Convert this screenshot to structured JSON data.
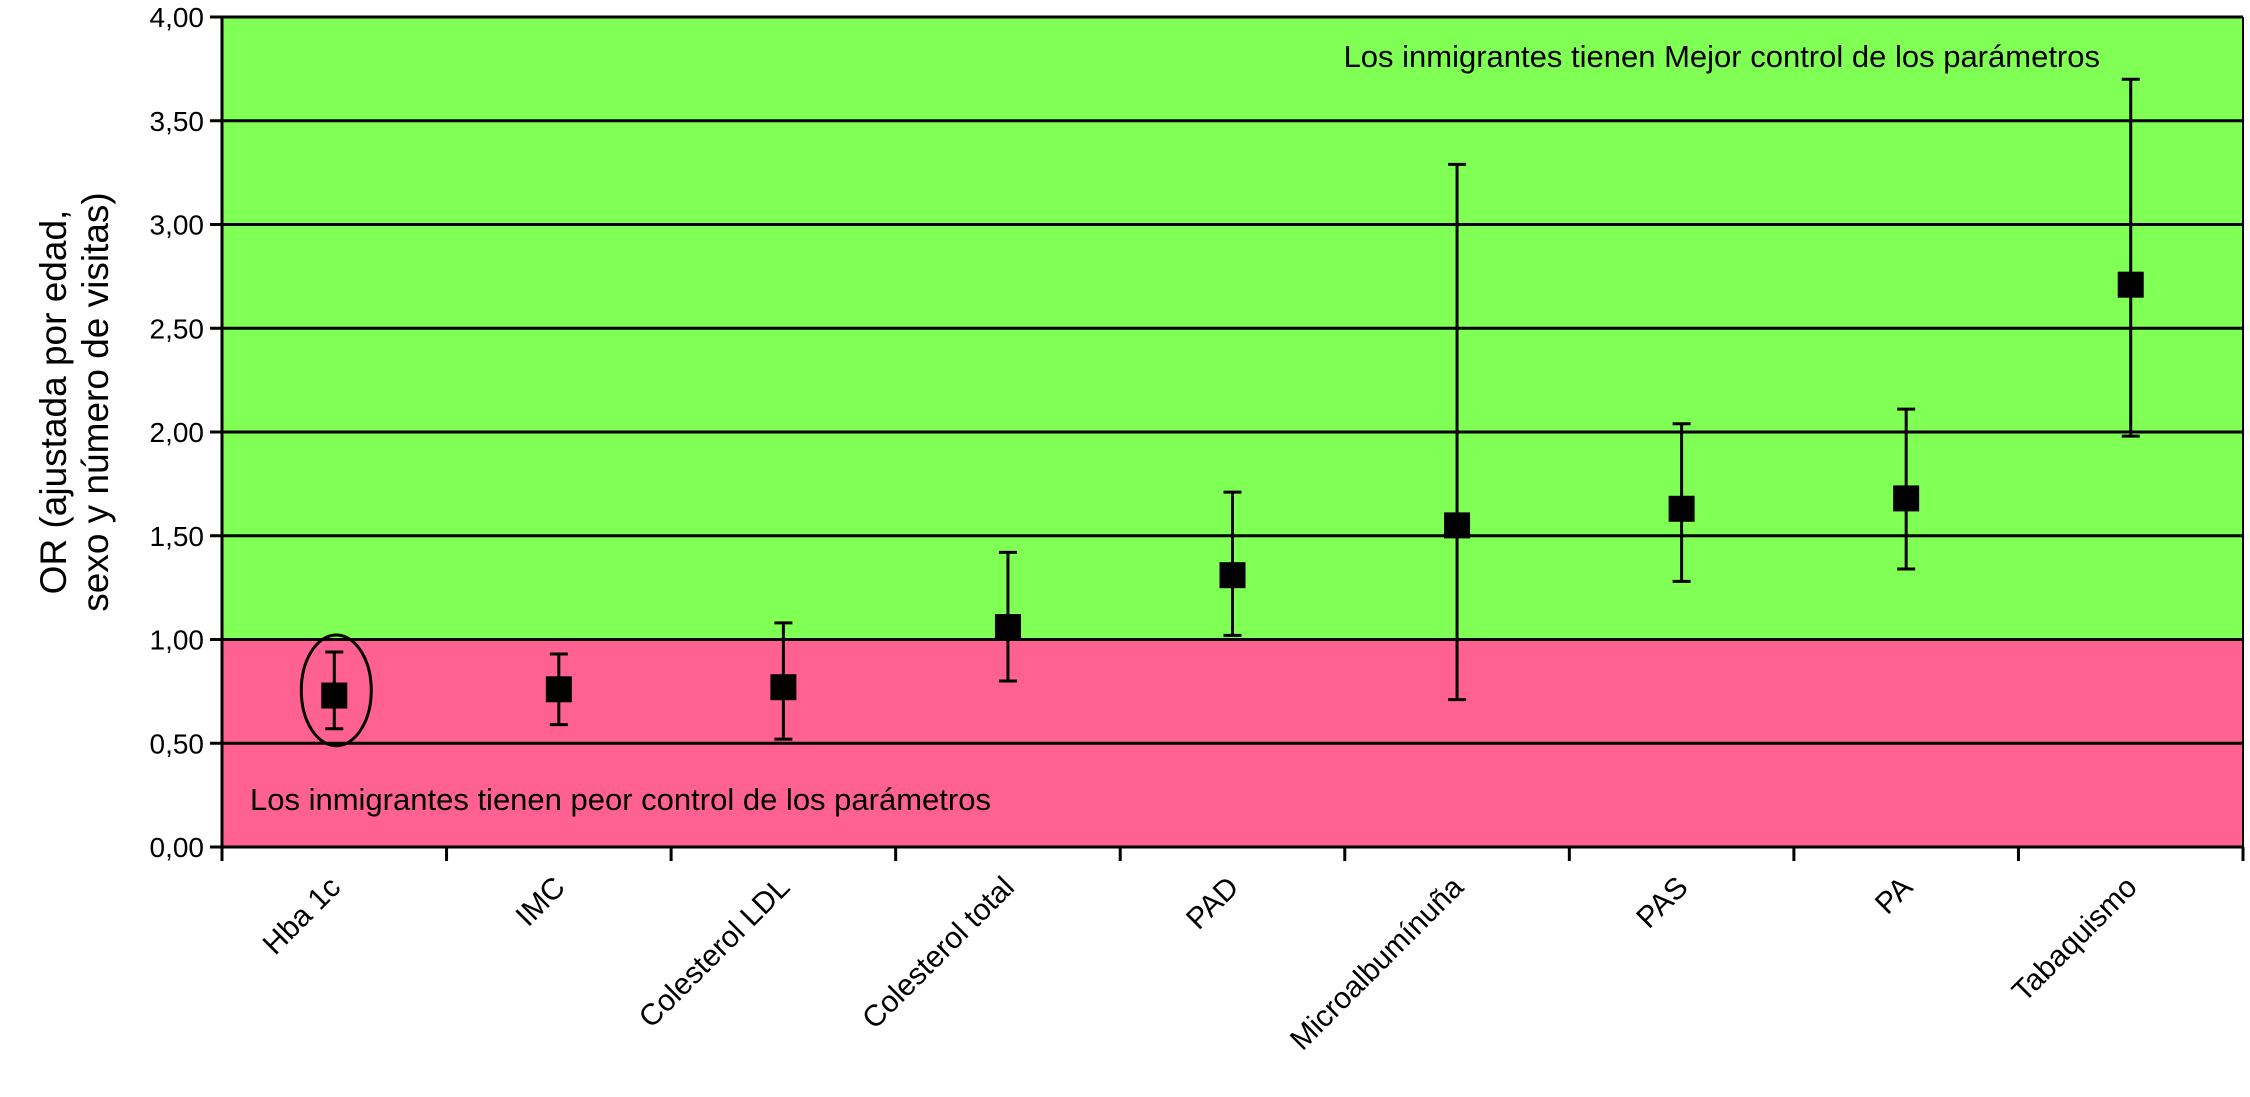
{
  "chart_data": {
    "type": "scatter",
    "variant": "point-with-confidence-interval",
    "title": "",
    "xlabel": "",
    "ylabel_lines": [
      "OR (ajustada por edad,",
      "sexo y número de visitas)"
    ],
    "ylim": [
      0,
      4
    ],
    "yticks": [
      "0,00",
      "0,50",
      "1,00",
      "1,50",
      "2,00",
      "2,50",
      "3,00",
      "3,50",
      "4,00"
    ],
    "ytick_values": [
      0,
      0.5,
      1,
      1.5,
      2,
      2.5,
      3,
      3.5,
      4
    ],
    "reference_line": 1.0,
    "grid": "horizontal",
    "legend": "none",
    "categories": [
      "Hba 1c",
      "IMC",
      "Colesterol LDL",
      "Colesterol total",
      "PAD",
      "Microalbumínuña",
      "PAS",
      "PA",
      "Tabaquismo"
    ],
    "points": [
      {
        "category": "Hba 1c",
        "or": 0.73,
        "lower": 0.57,
        "upper": 0.94,
        "highlighted": true
      },
      {
        "category": "IMC",
        "or": 0.76,
        "lower": 0.59,
        "upper": 0.93,
        "highlighted": false
      },
      {
        "category": "Colesterol LDL",
        "or": 0.77,
        "lower": 0.52,
        "upper": 1.08,
        "highlighted": false
      },
      {
        "category": "Colesterol total",
        "or": 1.06,
        "lower": 0.8,
        "upper": 1.42,
        "highlighted": false
      },
      {
        "category": "PAD",
        "or": 1.31,
        "lower": 1.02,
        "upper": 1.71,
        "highlighted": false
      },
      {
        "category": "Microalbumínuña",
        "or": 1.55,
        "lower": 0.71,
        "upper": 3.29,
        "highlighted": false
      },
      {
        "category": "PAS",
        "or": 1.63,
        "lower": 1.28,
        "upper": 2.04,
        "highlighted": false
      },
      {
        "category": "PA",
        "or": 1.68,
        "lower": 1.34,
        "upper": 2.11,
        "highlighted": false
      },
      {
        "category": "Tabaquismo",
        "or": 2.71,
        "lower": 1.98,
        "upper": 3.7,
        "highlighted": false
      }
    ],
    "regions": [
      {
        "from": 1.0,
        "to": 4.0,
        "color": "#80ff55",
        "label": "Los inmigrantes tienen Mejor control de los parámetros",
        "label_position": "top-right"
      },
      {
        "from": 0.0,
        "to": 1.0,
        "color": "#ff6192",
        "label": "Los inmigrantes tienen peor control de los parámetros",
        "label_position": "bottom-left"
      }
    ],
    "colors": {
      "axis": "#000000",
      "grid": "#000000",
      "marker": "#000000",
      "errorbar": "#000000"
    }
  }
}
